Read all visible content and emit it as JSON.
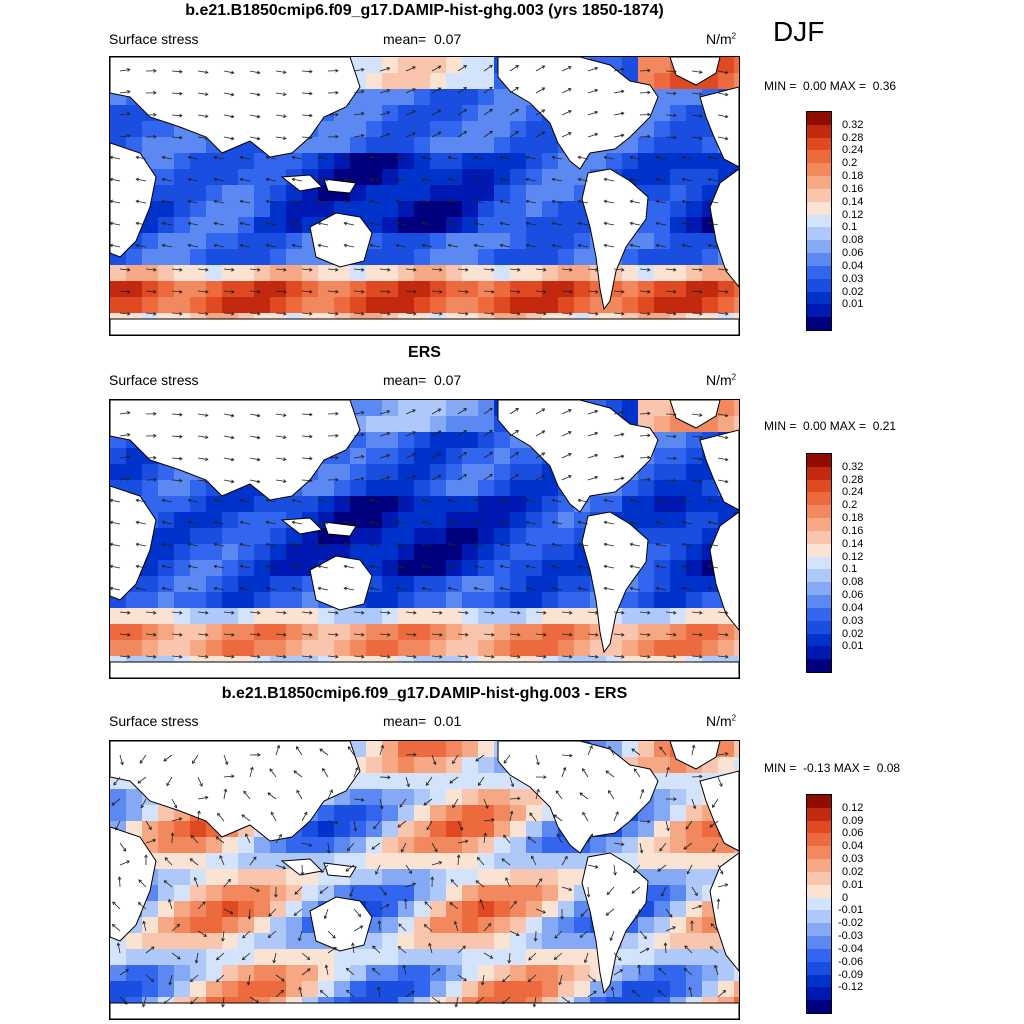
{
  "season": "DJF",
  "units": {
    "base": "N/m",
    "exp": "2"
  },
  "colors": {
    "stress_scale": [
      "#00007f",
      "#0019b3",
      "#0033cc",
      "#1a4ee0",
      "#3366ee",
      "#5c88f2",
      "#86a9f6",
      "#aec8f9",
      "#d3e3fb",
      "#fbe3d3",
      "#f9c6ad",
      "#f6a884",
      "#f2895e",
      "#ec6a3d",
      "#e04a22",
      "#c3290f",
      "#8f0c00"
    ],
    "diff_scale": [
      "#00007f",
      "#0019b3",
      "#0033cc",
      "#1a4ee0",
      "#3366ee",
      "#5c88f2",
      "#86a9f6",
      "#aec8f9",
      "#d3e3fb",
      "#fbe3d3",
      "#f9c6ad",
      "#f6a884",
      "#f2895e",
      "#ec6a3d",
      "#e04a22",
      "#c3290f",
      "#8f0c00"
    ]
  },
  "panels": [
    {
      "title": "b.e21.B1850cmip6.f09_g17.DAMIP-hist-ghg.003 (yrs 1850-1874)",
      "variable": "Surface stress",
      "mean_label": "mean=",
      "mean": "0.07",
      "min_label": "MIN =",
      "min": "0.00",
      "max_label": "MAX =",
      "max": "0.36"
    },
    {
      "title": "ERS",
      "variable": "Surface stress",
      "mean_label": "mean=",
      "mean": "0.07",
      "min_label": "MIN =",
      "min": "0.00",
      "max_label": "MAX =",
      "max": "0.21"
    },
    {
      "title": "b.e21.B1850cmip6.f09_g17.DAMIP-hist-ghg.003 - ERS",
      "variable": "Surface stress",
      "mean_label": "mean=",
      "mean": "0.01",
      "min_label": "MIN =",
      "min": "-0.13",
      "max_label": "MAX =",
      "max": "0.08"
    }
  ],
  "chart_data": [
    {
      "type": "heatmap",
      "title": "b.e21.B1850cmip6.f09_g17.DAMIP-hist-ghg.003 (yrs 1850-1874)",
      "field": "Surface stress",
      "units": "N/m^2",
      "season": "DJF",
      "mean": 0.07,
      "min": 0.0,
      "max": 0.36,
      "colorbar_levels": [
        "0.32",
        "0.28",
        "0.24",
        "0.2",
        "0.18",
        "0.16",
        "0.14",
        "0.12",
        "0.1",
        "0.08",
        "0.06",
        "0.04",
        "0.03",
        "0.02",
        "0.01"
      ],
      "vectors": "wind stress direction"
    },
    {
      "type": "heatmap",
      "title": "ERS",
      "field": "Surface stress",
      "units": "N/m^2",
      "season": "DJF",
      "mean": 0.07,
      "min": 0.0,
      "max": 0.21,
      "colorbar_levels": [
        "0.32",
        "0.28",
        "0.24",
        "0.2",
        "0.18",
        "0.16",
        "0.14",
        "0.12",
        "0.1",
        "0.08",
        "0.06",
        "0.04",
        "0.03",
        "0.02",
        "0.01"
      ],
      "vectors": "wind stress direction"
    },
    {
      "type": "heatmap",
      "title": "b.e21.B1850cmip6.f09_g17.DAMIP-hist-ghg.003 - ERS",
      "field": "Surface stress",
      "units": "N/m^2",
      "season": "DJF",
      "mean": 0.01,
      "min": -0.13,
      "max": 0.08,
      "colorbar_levels": [
        "0.12",
        "0.09",
        "0.06",
        "0.04",
        "0.03",
        "0.02",
        "0.01",
        "0",
        "-0.01",
        "-0.02",
        "-0.03",
        "-0.04",
        "-0.06",
        "-0.09",
        "-0.12"
      ],
      "vectors": "wind stress difference"
    }
  ]
}
